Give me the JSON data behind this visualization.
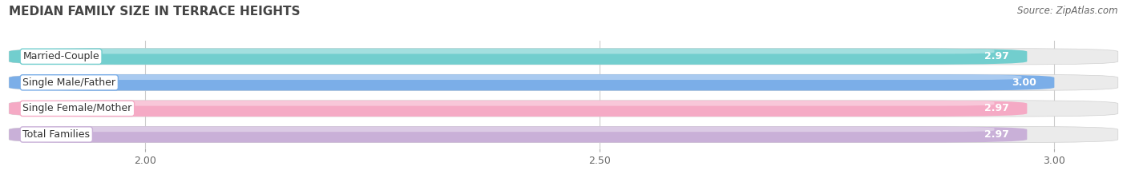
{
  "title": "MEDIAN FAMILY SIZE IN TERRACE HEIGHTS",
  "source": "Source: ZipAtlas.com",
  "categories": [
    "Married-Couple",
    "Single Male/Father",
    "Single Female/Mother",
    "Total Families"
  ],
  "values": [
    2.97,
    3.0,
    2.97,
    2.97
  ],
  "bar_colors": [
    "#72cece",
    "#7baee8",
    "#f5aac5",
    "#c9b0d8"
  ],
  "bar_highlight_colors": [
    "#a8e4e4",
    "#aacbf4",
    "#fbd0e0",
    "#ddc8ec"
  ],
  "label_border_colors": [
    "#72cece",
    "#7baee8",
    "#f5aac5",
    "#c9b0d8"
  ],
  "value_labels": [
    "2.97",
    "3.00",
    "2.97",
    "2.97"
  ],
  "xlim_min": 1.85,
  "xlim_max": 3.07,
  "xticks": [
    2.0,
    2.5,
    3.0
  ],
  "xtick_labels": [
    "2.00",
    "2.50",
    "3.00"
  ],
  "background_color": "#ffffff",
  "bar_bg_color": "#e8e8e8",
  "title_fontsize": 11,
  "source_fontsize": 8.5,
  "label_fontsize": 9,
  "value_fontsize": 9
}
